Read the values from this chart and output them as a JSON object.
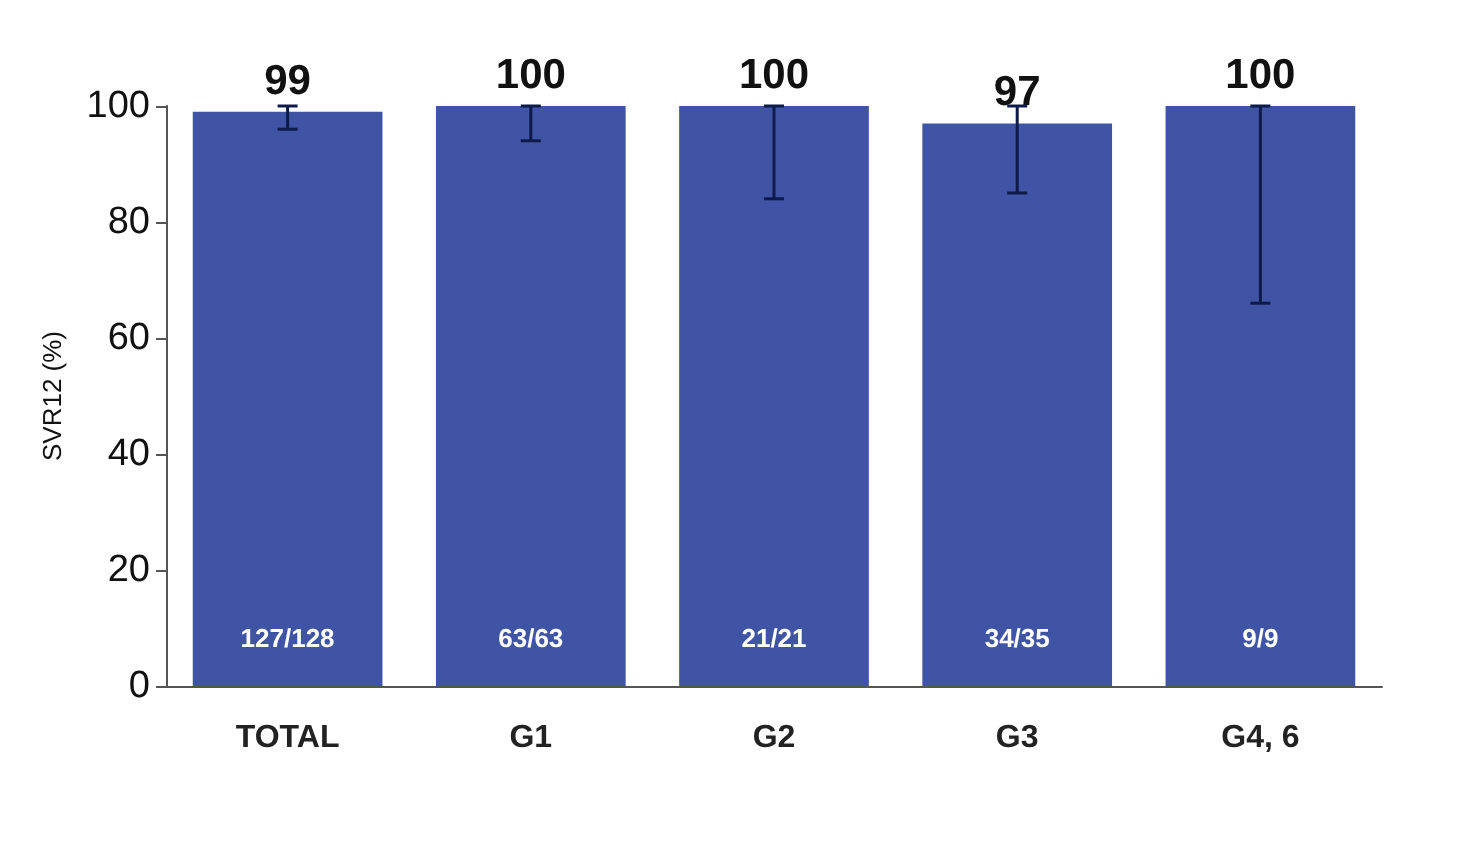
{
  "chart_data": {
    "type": "bar",
    "ylabel": "SVR12 (%)",
    "categories": [
      "TOTAL",
      "G1",
      "G2",
      "G3",
      "G4, 6"
    ],
    "values": [
      99,
      100,
      100,
      97,
      100
    ],
    "errors": [
      [
        96,
        100
      ],
      [
        94,
        100
      ],
      [
        84,
        100
      ],
      [
        85,
        100
      ],
      [
        66,
        100
      ]
    ],
    "color": "#3f54a4",
    "data_labels": true,
    "ylim": [
      0,
      100
    ],
    "yticks": [
      0,
      20,
      40,
      60,
      80,
      100
    ],
    "grid": false,
    "annotations": [
      "127/128",
      "63/63",
      "21/21",
      "34/35",
      "9/9"
    ]
  }
}
